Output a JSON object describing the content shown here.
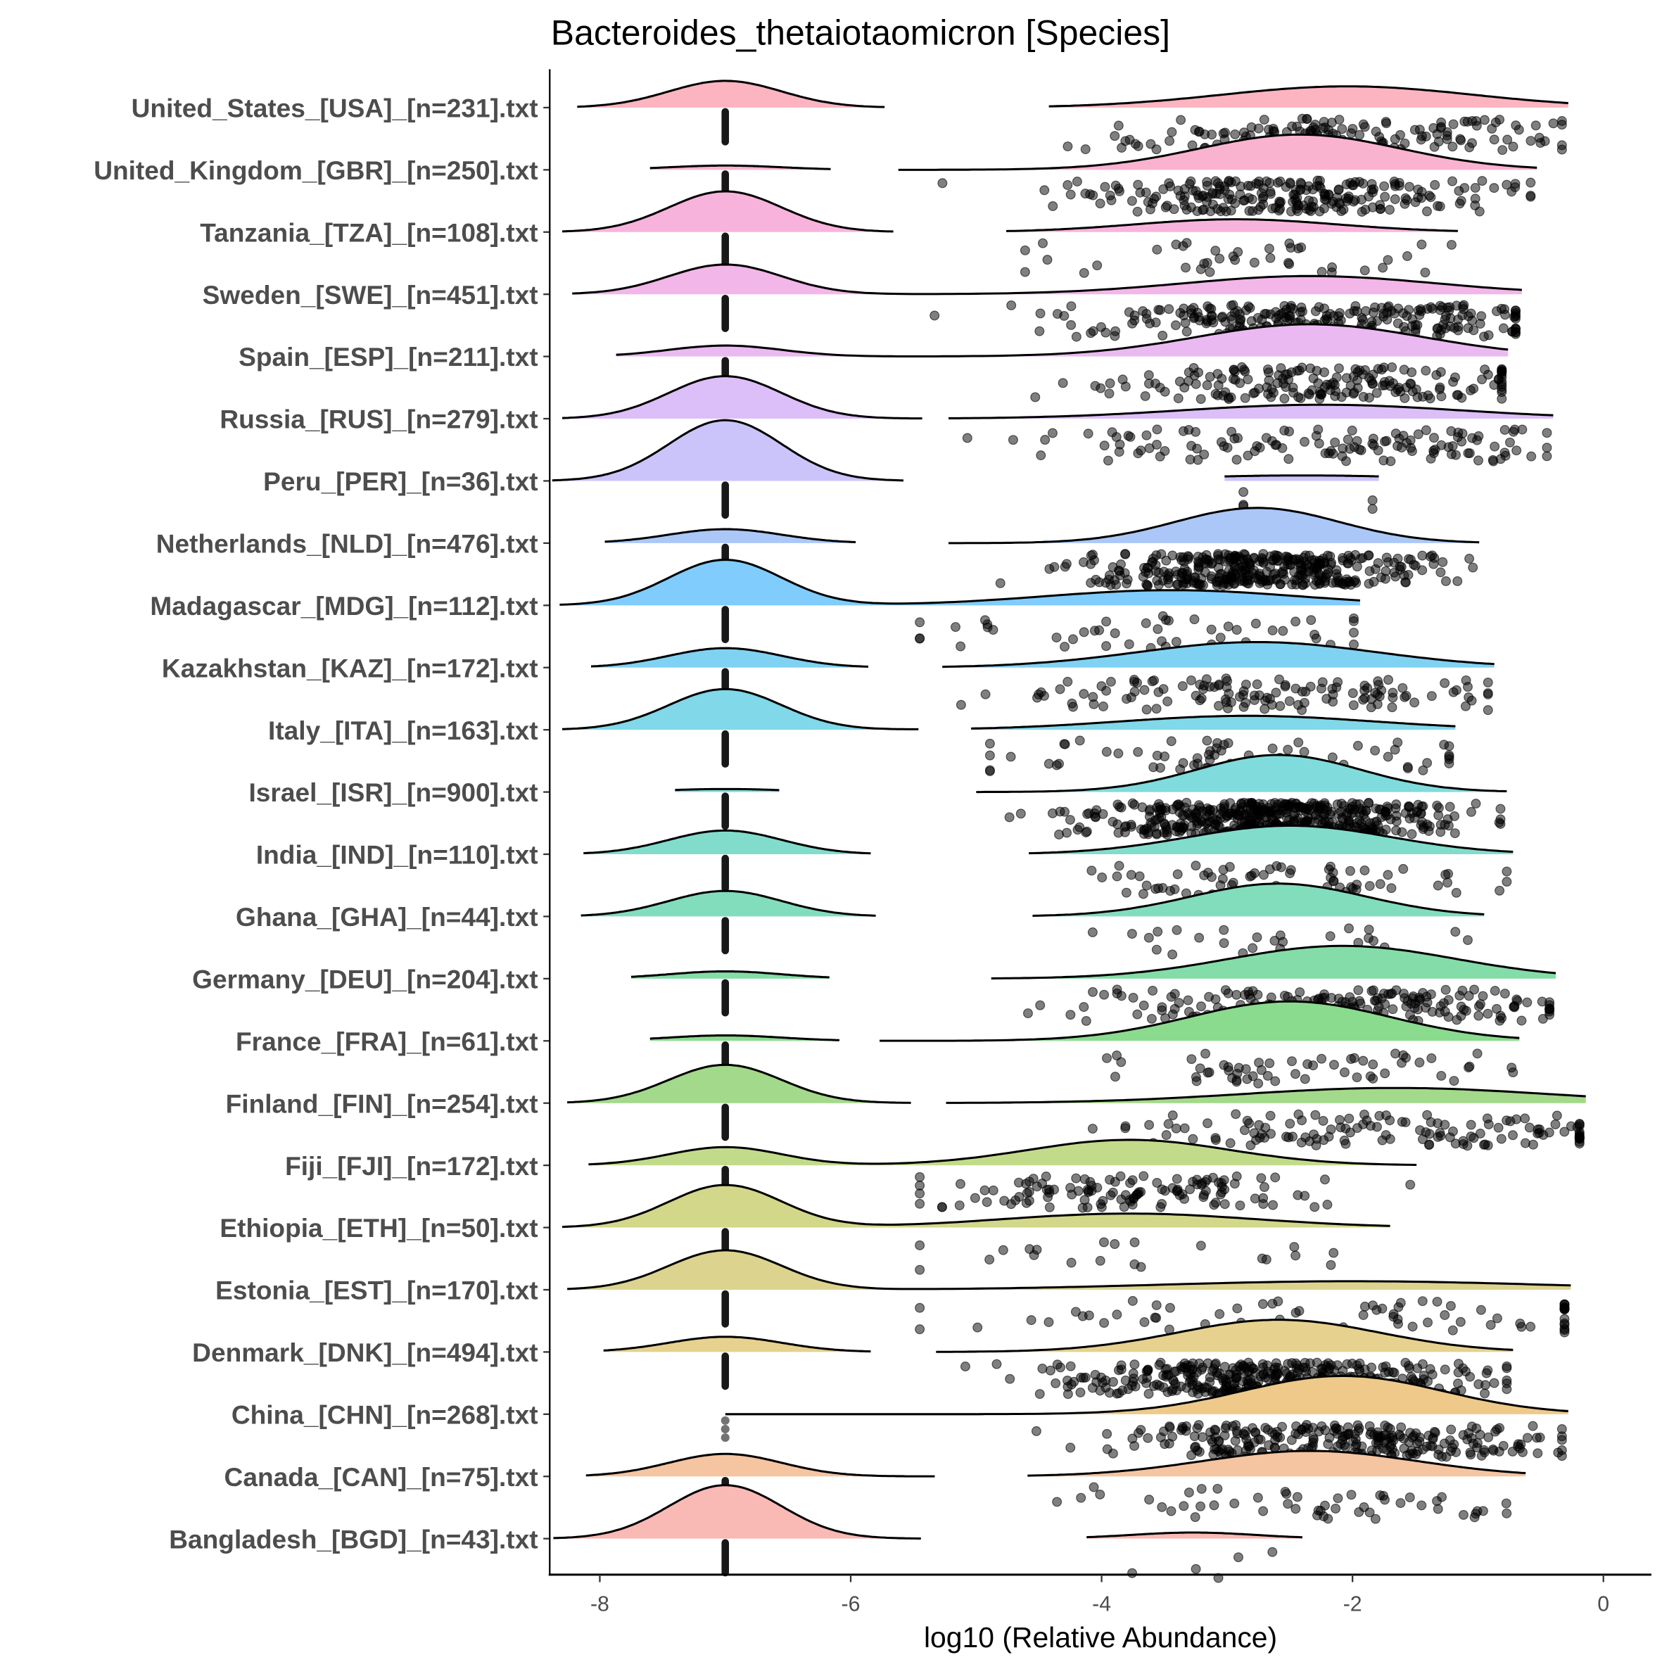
{
  "chart_data": {
    "type": "raincloud",
    "title": "Bacteroides_thetaiotaomicron [Species]",
    "xlabel": "log10 (Relative Abundance)",
    "ylabel": "",
    "xlim": [
      -8.4,
      0.4
    ],
    "xticks": [
      -8,
      -6,
      -4,
      -2,
      0
    ],
    "xtick_labels": [
      "-8",
      "-6",
      "-4",
      "-2",
      "0"
    ],
    "zero_value": -7,
    "rows": [
      {
        "label": "United_States_[USA]_[n=231].txt",
        "n": 231,
        "color": "#FBB4C0",
        "zero_peak": 0.44,
        "zero_range": [
          -8.18,
          -5.73
        ],
        "nz_mean": -2.04,
        "nz_sd": 1.0,
        "nz_peak": 0.35,
        "nz_range": [
          -4.42,
          -0.28
        ]
      },
      {
        "label": "United_Kingdom_[GBR]_[n=250].txt",
        "n": 250,
        "color": "#F9B3CF",
        "zero_peak": 0.07,
        "zero_range": [
          -7.6,
          -6.16
        ],
        "nz_mean": -2.42,
        "nz_sd": 0.8,
        "nz_peak": 0.58,
        "nz_range": [
          -5.62,
          -0.53
        ]
      },
      {
        "label": "Tanzania_[TZA]_[n=108].txt",
        "n": 108,
        "color": "#F8B3DC",
        "zero_peak": 0.67,
        "zero_range": [
          -8.3,
          -5.66
        ],
        "nz_mean": -2.93,
        "nz_sd": 0.8,
        "nz_peak": 0.21,
        "nz_range": [
          -4.76,
          -1.16
        ]
      },
      {
        "label": "Sweden_[SWE]_[n=451].txt",
        "n": 451,
        "color": "#F2B6E8",
        "zero_peak": 0.49,
        "zero_range": [
          -8.22,
          -5.6
        ],
        "nz_mean": -2.34,
        "nz_sd": 1.0,
        "nz_peak": 0.3,
        "nz_range": [
          -6.0,
          -0.65
        ]
      },
      {
        "label": "Spain_[ESP]_[n=211].txt",
        "n": 211,
        "color": "#EBB9F2",
        "zero_peak": 0.18,
        "zero_range": [
          -7.87,
          -5.8
        ],
        "nz_mean": -2.34,
        "nz_sd": 0.9,
        "nz_peak": 0.53,
        "nz_range": [
          -6.1,
          -0.76
        ]
      },
      {
        "label": "Russia_[RUS]_[n=279].txt",
        "n": 279,
        "color": "#DCBEF8",
        "zero_peak": 0.7,
        "zero_range": [
          -8.3,
          -5.43
        ],
        "nz_mean": -2.25,
        "nz_sd": 1.1,
        "nz_peak": 0.23,
        "nz_range": [
          -5.22,
          -0.4
        ]
      },
      {
        "label": "Peru_[PER]_[n=36].txt",
        "n": 36,
        "color": "#CAC4FA",
        "zero_peak": 1.0,
        "zero_range": [
          -8.38,
          -5.58
        ],
        "nz_mean": -2.4,
        "nz_sd": 1.0,
        "nz_peak": 0.09,
        "nz_range": [
          -3.02,
          -1.79
        ]
      },
      {
        "label": "Netherlands_[NLD]_[n=476].txt",
        "n": 476,
        "color": "#ABC7F8",
        "zero_peak": 0.23,
        "zero_range": [
          -7.96,
          -5.96
        ],
        "nz_mean": -2.76,
        "nz_sd": 0.65,
        "nz_peak": 0.58,
        "nz_range": [
          -5.22,
          -0.99
        ]
      },
      {
        "label": "Madagascar_[MDG]_[n=112].txt",
        "n": 112,
        "color": "#80CCFC",
        "zero_peak": 0.75,
        "zero_range": [
          -8.32,
          -5.6
        ],
        "nz_mean": -3.44,
        "nz_sd": 1.0,
        "nz_peak": 0.25,
        "nz_range": [
          -5.6,
          -1.94
        ]
      },
      {
        "label": "Kazakhstan_[KAZ]_[n=172].txt",
        "n": 172,
        "color": "#80D2F2",
        "zero_peak": 0.32,
        "zero_range": [
          -8.07,
          -5.86
        ],
        "nz_mean": -2.76,
        "nz_sd": 0.95,
        "nz_peak": 0.42,
        "nz_range": [
          -5.27,
          -0.87
        ]
      },
      {
        "label": "Italy_[ITA]_[n=163].txt",
        "n": 163,
        "color": "#80D8E8",
        "zero_peak": 0.67,
        "zero_range": [
          -8.3,
          -5.46
        ],
        "nz_mean": -2.84,
        "nz_sd": 1.0,
        "nz_peak": 0.23,
        "nz_range": [
          -5.04,
          -1.18
        ]
      },
      {
        "label": "Israel_[ISR]_[n=900].txt",
        "n": 900,
        "color": "#80DBDC",
        "zero_peak": 0.05,
        "zero_range": [
          -7.4,
          -6.57
        ],
        "nz_mean": -2.59,
        "nz_sd": 0.65,
        "nz_peak": 0.61,
        "nz_range": [
          -5.0,
          -0.77
        ]
      },
      {
        "label": "India_[IND]_[n=110].txt",
        "n": 110,
        "color": "#82DCCC",
        "zero_peak": 0.39,
        "zero_range": [
          -8.13,
          -5.84
        ],
        "nz_mean": -2.5,
        "nz_sd": 0.8,
        "nz_peak": 0.47,
        "nz_range": [
          -4.58,
          -0.72
        ]
      },
      {
        "label": "Ghana_[GHA]_[n=44].txt",
        "n": 44,
        "color": "#82DDBD",
        "zero_peak": 0.42,
        "zero_range": [
          -8.15,
          -5.8
        ],
        "nz_mean": -2.59,
        "nz_sd": 0.7,
        "nz_peak": 0.54,
        "nz_range": [
          -4.55,
          -0.95
        ]
      },
      {
        "label": "Germany_[DEU]_[n=204].txt",
        "n": 204,
        "color": "#84DDA8",
        "zero_peak": 0.12,
        "zero_range": [
          -7.75,
          -6.17
        ],
        "nz_mean": -2.08,
        "nz_sd": 0.9,
        "nz_peak": 0.54,
        "nz_range": [
          -4.88,
          -0.38
        ]
      },
      {
        "label": "France_[FRA]_[n=61].txt",
        "n": 61,
        "color": "#8BDB8E",
        "zero_peak": 0.09,
        "zero_range": [
          -7.6,
          -6.09
        ],
        "nz_mean": -2.5,
        "nz_sd": 0.8,
        "nz_peak": 0.65,
        "nz_range": [
          -5.77,
          -0.67
        ]
      },
      {
        "label": "Finland_[FIN]_[n=254].txt",
        "n": 254,
        "color": "#A3D98A",
        "zero_peak": 0.63,
        "zero_range": [
          -8.26,
          -5.52
        ],
        "nz_mean": -1.66,
        "nz_sd": 1.2,
        "nz_peak": 0.25,
        "nz_range": [
          -5.24,
          -0.14
        ]
      },
      {
        "label": "Fiji_[FJI]_[n=172].txt",
        "n": 172,
        "color": "#C2DB8A",
        "zero_peak": 0.3,
        "zero_range": [
          -8.09,
          -5.6
        ],
        "nz_mean": -3.78,
        "nz_sd": 0.8,
        "nz_peak": 0.42,
        "nz_range": [
          -5.6,
          -1.49
        ]
      },
      {
        "label": "Ethiopia_[ETH]_[n=50].txt",
        "n": 50,
        "color": "#D3D78A",
        "zero_peak": 0.7,
        "zero_range": [
          -8.3,
          -5.6
        ],
        "nz_mean": -3.78,
        "nz_sd": 1.0,
        "nz_peak": 0.23,
        "nz_range": [
          -5.6,
          -1.7
        ]
      },
      {
        "label": "Estonia_[EST]_[n=170].txt",
        "n": 170,
        "color": "#DCD38E",
        "zero_peak": 0.65,
        "zero_range": [
          -8.26,
          -5.6
        ],
        "nz_mean": -2.0,
        "nz_sd": 1.5,
        "nz_peak": 0.14,
        "nz_range": [
          -5.6,
          -0.26
        ]
      },
      {
        "label": "Denmark_[DNK]_[n=494].txt",
        "n": 494,
        "color": "#E6D18E",
        "zero_peak": 0.25,
        "zero_range": [
          -7.97,
          -5.84
        ],
        "nz_mean": -2.59,
        "nz_sd": 0.8,
        "nz_peak": 0.53,
        "nz_range": [
          -5.32,
          -0.72
        ]
      },
      {
        "label": "China_[CHN]_[n=268].txt",
        "n": 268,
        "color": "#EEC98A",
        "zero_peak": 0.0,
        "zero_range": [
          -7.0,
          -7.0
        ],
        "nz_mean": -2.08,
        "nz_sd": 0.8,
        "nz_peak": 0.63,
        "nz_range": [
          -4.67,
          -0.28
        ]
      },
      {
        "label": "Canada_[CAN]_[n=75].txt",
        "n": 75,
        "color": "#F5C4A0",
        "zero_peak": 0.37,
        "zero_range": [
          -8.11,
          -5.33
        ],
        "nz_mean": -2.34,
        "nz_sd": 0.85,
        "nz_peak": 0.42,
        "nz_range": [
          -4.59,
          -0.62
        ]
      },
      {
        "label": "Bangladesh_[BGD]_[n=43].txt",
        "n": 43,
        "color": "#F9B9B5",
        "zero_peak": 0.88,
        "zero_range": [
          -8.37,
          -5.44
        ],
        "nz_mean": -3.27,
        "nz_sd": 0.5,
        "nz_peak": 0.1,
        "nz_range": [
          -4.12,
          -2.4
        ]
      }
    ]
  }
}
